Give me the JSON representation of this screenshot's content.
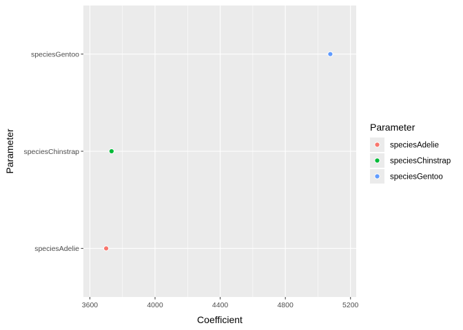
{
  "chart_data": {
    "type": "scatter",
    "xlabel": "Coefficient",
    "ylabel": "Parameter",
    "categories": [
      "speciesAdelie",
      "speciesChinstrap",
      "speciesGentoo"
    ],
    "x_ticks": [
      3600,
      4000,
      4400,
      4800,
      5200
    ],
    "xlim": [
      3560,
      5235
    ],
    "grid": true,
    "legend": {
      "title": "Parameter",
      "placement": "right",
      "entries": [
        "speciesAdelie",
        "speciesChinstrap",
        "speciesGentoo"
      ]
    },
    "series": [
      {
        "name": "speciesAdelie",
        "category": "speciesAdelie",
        "value": 3700,
        "color": "#F8766D"
      },
      {
        "name": "speciesChinstrap",
        "category": "speciesChinstrap",
        "value": 3733,
        "color": "#00BA38"
      },
      {
        "name": "speciesGentoo",
        "category": "speciesGentoo",
        "value": 5076,
        "color": "#619CFF"
      }
    ],
    "panel_background": "#EBEBEB",
    "grid_color": "#FFFFFF"
  }
}
